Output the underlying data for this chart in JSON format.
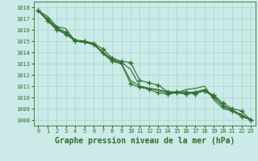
{
  "background_color": "#cceae7",
  "plot_bg_color": "#cceae7",
  "grid_color": "#aad4d0",
  "line_color": "#2d6e2d",
  "title": "Graphe pression niveau de la mer (hPa)",
  "ylim": [
    1007.5,
    1018.5
  ],
  "xlim": [
    -0.5,
    23.5
  ],
  "yticks": [
    1008,
    1009,
    1010,
    1011,
    1012,
    1013,
    1014,
    1015,
    1016,
    1017,
    1018
  ],
  "xticks": [
    0,
    1,
    2,
    3,
    4,
    5,
    6,
    7,
    8,
    9,
    10,
    11,
    12,
    13,
    14,
    15,
    16,
    17,
    18,
    19,
    20,
    21,
    22,
    23
  ],
  "series": [
    [
      1017.7,
      1017.2,
      1016.3,
      1016.1,
      1015.0,
      1014.9,
      1014.7,
      1014.0,
      1013.4,
      1013.1,
      1012.5,
      1011.0,
      1010.8,
      1010.7,
      1010.5,
      1010.4,
      1010.7,
      1010.8,
      1011.0,
      1009.8,
      1009.0,
      1008.8,
      1008.5,
      1008.0
    ],
    [
      1017.7,
      1017.0,
      1016.2,
      1015.8,
      1015.1,
      1015.0,
      1014.8,
      1014.3,
      1013.5,
      1013.2,
      1013.1,
      1011.5,
      1011.3,
      1011.1,
      1010.5,
      1010.5,
      1010.5,
      1010.3,
      1010.6,
      1010.2,
      1009.5,
      1009.0,
      1008.8,
      1008.0
    ],
    [
      1017.7,
      1016.9,
      1016.1,
      1015.7,
      1015.0,
      1014.9,
      1014.8,
      1014.0,
      1013.3,
      1013.0,
      1011.5,
      1011.0,
      1010.8,
      1010.6,
      1010.4,
      1010.4,
      1010.4,
      1010.5,
      1010.7,
      1010.1,
      1009.3,
      1008.9,
      1008.4,
      1008.0
    ],
    [
      1017.7,
      1016.8,
      1016.0,
      1015.6,
      1015.0,
      1014.9,
      1014.7,
      1013.9,
      1013.2,
      1013.0,
      1011.2,
      1010.9,
      1010.7,
      1010.4,
      1010.3,
      1010.4,
      1010.3,
      1010.4,
      1010.6,
      1010.0,
      1009.2,
      1008.8,
      1008.3,
      1008.0
    ]
  ],
  "has_markers": [
    false,
    true,
    false,
    true
  ],
  "marker_style": "+",
  "marker_size": 4,
  "line_width": 0.8,
  "title_fontsize": 7,
  "tick_fontsize": 5
}
